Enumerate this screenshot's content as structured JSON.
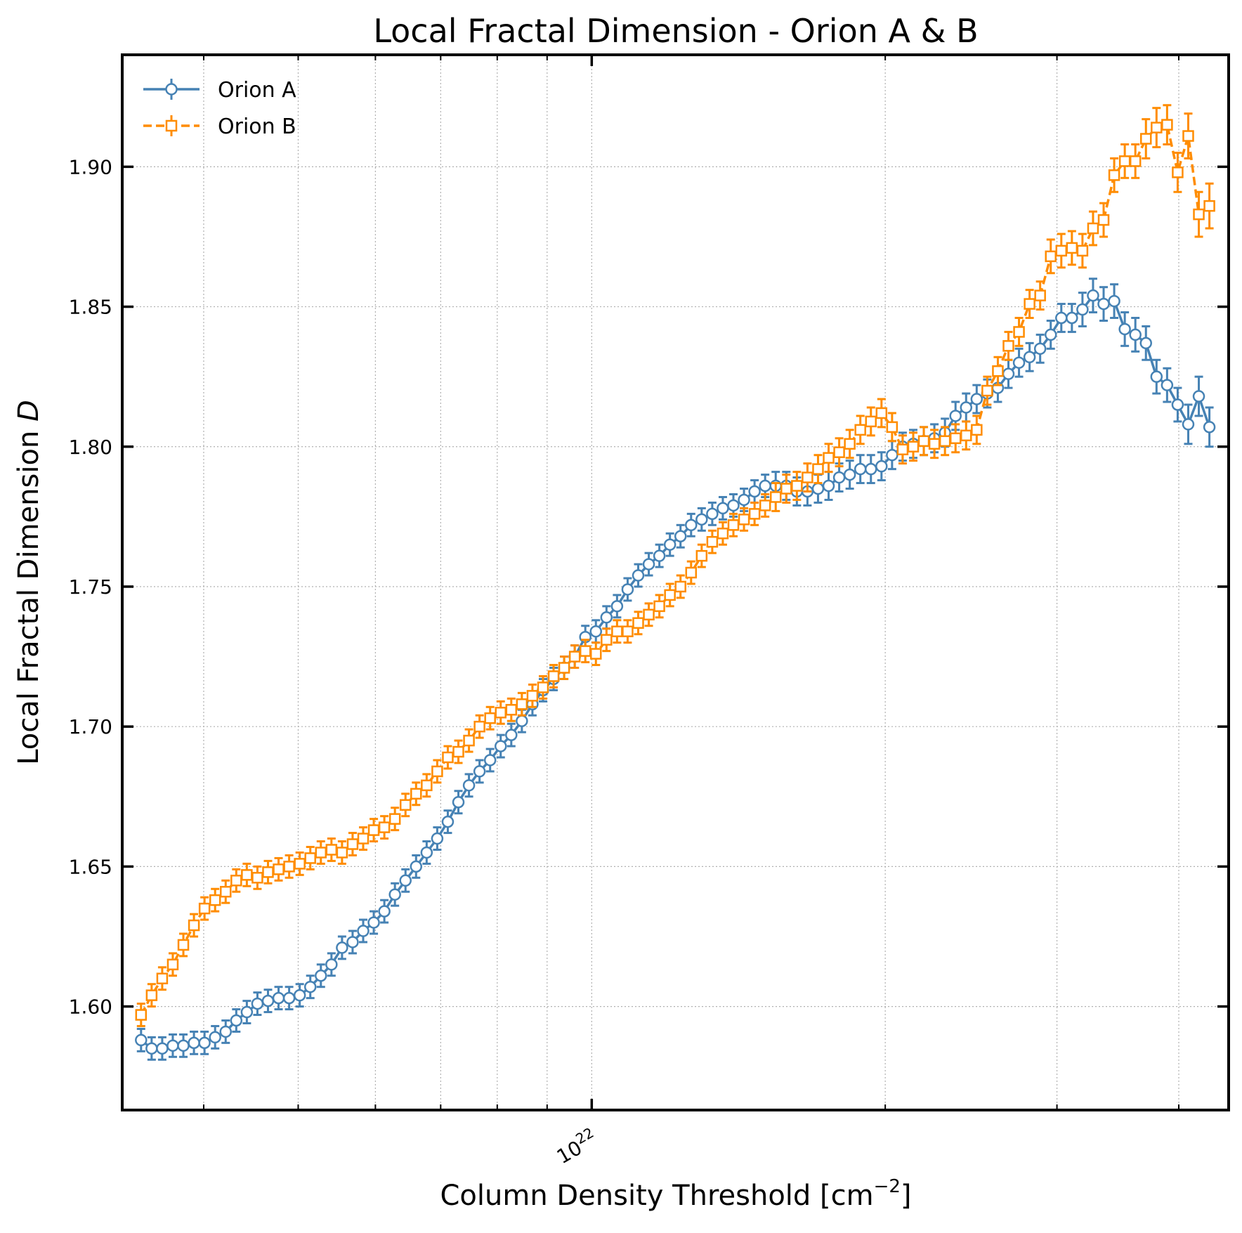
{
  "chart_data": {
    "type": "line",
    "title": "Local Fractal Dimension - Orion A & B",
    "xlabel": "Column Density Threshold [cm",
    "xlabel_sup": "−2",
    "xlabel_end": "]",
    "ylabel": "Local Fractal Dimension ",
    "ylabel_var": "D",
    "x_scale": "log",
    "xlim": [
      3.3e+21,
      4.5e+22
    ],
    "ylim": [
      1.563,
      1.94
    ],
    "x_major_tick": {
      "value": 1e+22,
      "base": "10",
      "exp": "22"
    },
    "x_minor_ticks": [
      4e+21,
      5e+21,
      6e+21,
      7e+21,
      8e+21,
      9e+21,
      2e+22,
      3e+22,
      4e+22
    ],
    "y_ticks": [
      1.6,
      1.65,
      1.7,
      1.75,
      1.8,
      1.85,
      1.9
    ],
    "y_tick_labels": [
      "1.60",
      "1.65",
      "1.70",
      "1.75",
      "1.80",
      "1.85",
      "1.90"
    ],
    "grid": true,
    "legend_position": "top-left",
    "x_range": [
      3.45e+21,
      4.3e+22
    ],
    "series": [
      {
        "name": "Orion A",
        "color": "#4682b4",
        "marker": "circle",
        "linestyle": "solid",
        "y": [
          1.588,
          1.585,
          1.585,
          1.586,
          1.586,
          1.587,
          1.587,
          1.589,
          1.591,
          1.595,
          1.598,
          1.601,
          1.602,
          1.603,
          1.603,
          1.604,
          1.607,
          1.611,
          1.615,
          1.621,
          1.623,
          1.627,
          1.63,
          1.634,
          1.64,
          1.645,
          1.65,
          1.655,
          1.66,
          1.666,
          1.673,
          1.679,
          1.684,
          1.688,
          1.693,
          1.697,
          1.702,
          1.708,
          1.713,
          1.717,
          1.721,
          1.725,
          1.732,
          1.734,
          1.739,
          1.743,
          1.749,
          1.754,
          1.758,
          1.761,
          1.765,
          1.768,
          1.772,
          1.774,
          1.776,
          1.778,
          1.779,
          1.781,
          1.784,
          1.786,
          1.786,
          1.786,
          1.784,
          1.784,
          1.785,
          1.786,
          1.789,
          1.79,
          1.792,
          1.792,
          1.793,
          1.797,
          1.8,
          1.801,
          1.802,
          1.803,
          1.805,
          1.811,
          1.814,
          1.817,
          1.819,
          1.821,
          1.826,
          1.83,
          1.832,
          1.835,
          1.84,
          1.846,
          1.846,
          1.849,
          1.854,
          1.851,
          1.852,
          1.842,
          1.84,
          1.837,
          1.825,
          1.822,
          1.815,
          1.808,
          1.818,
          1.807
        ],
        "err": [
          0.004,
          0.004,
          0.004,
          0.004,
          0.004,
          0.004,
          0.004,
          0.004,
          0.004,
          0.004,
          0.004,
          0.004,
          0.004,
          0.004,
          0.004,
          0.004,
          0.004,
          0.004,
          0.004,
          0.004,
          0.004,
          0.004,
          0.004,
          0.004,
          0.004,
          0.004,
          0.004,
          0.004,
          0.004,
          0.004,
          0.004,
          0.004,
          0.004,
          0.004,
          0.004,
          0.004,
          0.004,
          0.004,
          0.004,
          0.004,
          0.004,
          0.004,
          0.004,
          0.004,
          0.004,
          0.004,
          0.004,
          0.004,
          0.004,
          0.004,
          0.004,
          0.004,
          0.004,
          0.004,
          0.004,
          0.004,
          0.004,
          0.004,
          0.004,
          0.004,
          0.005,
          0.005,
          0.005,
          0.005,
          0.005,
          0.005,
          0.005,
          0.005,
          0.005,
          0.005,
          0.005,
          0.005,
          0.005,
          0.005,
          0.005,
          0.005,
          0.005,
          0.005,
          0.005,
          0.005,
          0.005,
          0.005,
          0.005,
          0.005,
          0.005,
          0.005,
          0.005,
          0.005,
          0.005,
          0.006,
          0.006,
          0.006,
          0.006,
          0.006,
          0.006,
          0.006,
          0.006,
          0.006,
          0.006,
          0.007,
          0.007,
          0.007
        ]
      },
      {
        "name": "Orion B",
        "color": "#ff8c00",
        "marker": "square",
        "linestyle": "dashed",
        "y": [
          1.597,
          1.604,
          1.61,
          1.615,
          1.622,
          1.629,
          1.635,
          1.638,
          1.641,
          1.645,
          1.647,
          1.646,
          1.648,
          1.649,
          1.65,
          1.651,
          1.653,
          1.655,
          1.656,
          1.655,
          1.658,
          1.66,
          1.663,
          1.664,
          1.667,
          1.672,
          1.676,
          1.679,
          1.684,
          1.689,
          1.691,
          1.695,
          1.7,
          1.703,
          1.705,
          1.706,
          1.708,
          1.711,
          1.714,
          1.718,
          1.721,
          1.725,
          1.727,
          1.726,
          1.731,
          1.734,
          1.734,
          1.737,
          1.74,
          1.743,
          1.747,
          1.75,
          1.755,
          1.761,
          1.766,
          1.769,
          1.772,
          1.774,
          1.776,
          1.779,
          1.782,
          1.785,
          1.786,
          1.789,
          1.792,
          1.796,
          1.798,
          1.801,
          1.806,
          1.809,
          1.812,
          1.807,
          1.799,
          1.8,
          1.802,
          1.801,
          1.802,
          1.803,
          1.804,
          1.806,
          1.82,
          1.827,
          1.836,
          1.841,
          1.851,
          1.854,
          1.868,
          1.87,
          1.871,
          1.87,
          1.878,
          1.881,
          1.897,
          1.902,
          1.902,
          1.91,
          1.914,
          1.915,
          1.898,
          1.911,
          1.883,
          1.886
        ],
        "err": [
          0.004,
          0.004,
          0.004,
          0.004,
          0.004,
          0.004,
          0.004,
          0.004,
          0.004,
          0.004,
          0.004,
          0.004,
          0.004,
          0.004,
          0.004,
          0.004,
          0.004,
          0.004,
          0.004,
          0.004,
          0.004,
          0.004,
          0.004,
          0.004,
          0.004,
          0.004,
          0.004,
          0.004,
          0.004,
          0.004,
          0.004,
          0.004,
          0.004,
          0.004,
          0.004,
          0.004,
          0.004,
          0.004,
          0.004,
          0.004,
          0.004,
          0.004,
          0.004,
          0.004,
          0.004,
          0.004,
          0.004,
          0.004,
          0.004,
          0.004,
          0.004,
          0.004,
          0.004,
          0.004,
          0.004,
          0.004,
          0.004,
          0.004,
          0.004,
          0.004,
          0.005,
          0.005,
          0.005,
          0.005,
          0.005,
          0.005,
          0.005,
          0.005,
          0.005,
          0.005,
          0.005,
          0.005,
          0.005,
          0.005,
          0.005,
          0.005,
          0.005,
          0.005,
          0.005,
          0.005,
          0.005,
          0.005,
          0.005,
          0.005,
          0.005,
          0.005,
          0.006,
          0.006,
          0.006,
          0.006,
          0.006,
          0.006,
          0.006,
          0.006,
          0.006,
          0.007,
          0.007,
          0.007,
          0.007,
          0.008,
          0.008,
          0.008
        ]
      }
    ]
  }
}
